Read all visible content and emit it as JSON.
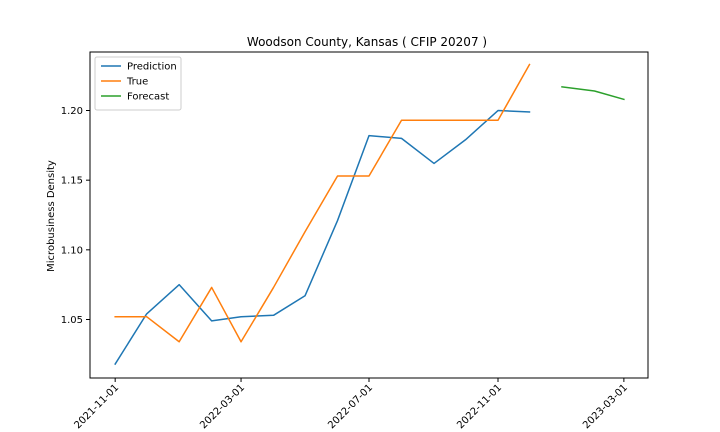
{
  "chart_data": {
    "type": "line",
    "title": "Woodson County, Kansas ( CFIP 20207 )",
    "xlabel": "",
    "ylabel": "Microbusiness Density",
    "xlim": [
      "2021-10-08",
      "2023-03-24"
    ],
    "ylim": [
      1.008,
      1.242
    ],
    "x_ticks": [
      "2021-11-01",
      "2022-03-01",
      "2022-07-01",
      "2022-11-01",
      "2023-03-01"
    ],
    "y_ticks": [
      1.05,
      1.1,
      1.15,
      1.2
    ],
    "y_tick_labels": [
      "1.05",
      "1.10",
      "1.15",
      "1.20"
    ],
    "legend_position": "top-left",
    "grid": false,
    "series": [
      {
        "name": "Prediction",
        "color": "#1f77b4",
        "x": [
          "2021-11-01",
          "2021-12-01",
          "2022-01-01",
          "2022-02-01",
          "2022-03-01",
          "2022-04-01",
          "2022-05-01",
          "2022-06-01",
          "2022-07-01",
          "2022-08-01",
          "2022-09-01",
          "2022-10-01",
          "2022-11-01",
          "2022-12-01"
        ],
        "values": [
          1.018,
          1.054,
          1.075,
          1.049,
          1.052,
          1.053,
          1.067,
          1.121,
          1.182,
          1.18,
          1.162,
          1.179,
          1.2,
          1.199
        ]
      },
      {
        "name": "True",
        "color": "#ff7f0e",
        "x": [
          "2021-11-01",
          "2021-12-01",
          "2022-01-01",
          "2022-02-01",
          "2022-03-01",
          "2022-04-01",
          "2022-05-01",
          "2022-06-01",
          "2022-07-01",
          "2022-08-01",
          "2022-09-01",
          "2022-10-01",
          "2022-11-01",
          "2022-12-01"
        ],
        "values": [
          1.052,
          1.052,
          1.034,
          1.073,
          1.034,
          1.073,
          1.113,
          1.153,
          1.153,
          1.193,
          1.193,
          1.193,
          1.193,
          1.233
        ]
      },
      {
        "name": "Forecast",
        "color": "#2ca02c",
        "x": [
          "2023-01-01",
          "2023-02-01",
          "2023-03-01"
        ],
        "values": [
          1.217,
          1.214,
          1.208
        ]
      }
    ]
  }
}
